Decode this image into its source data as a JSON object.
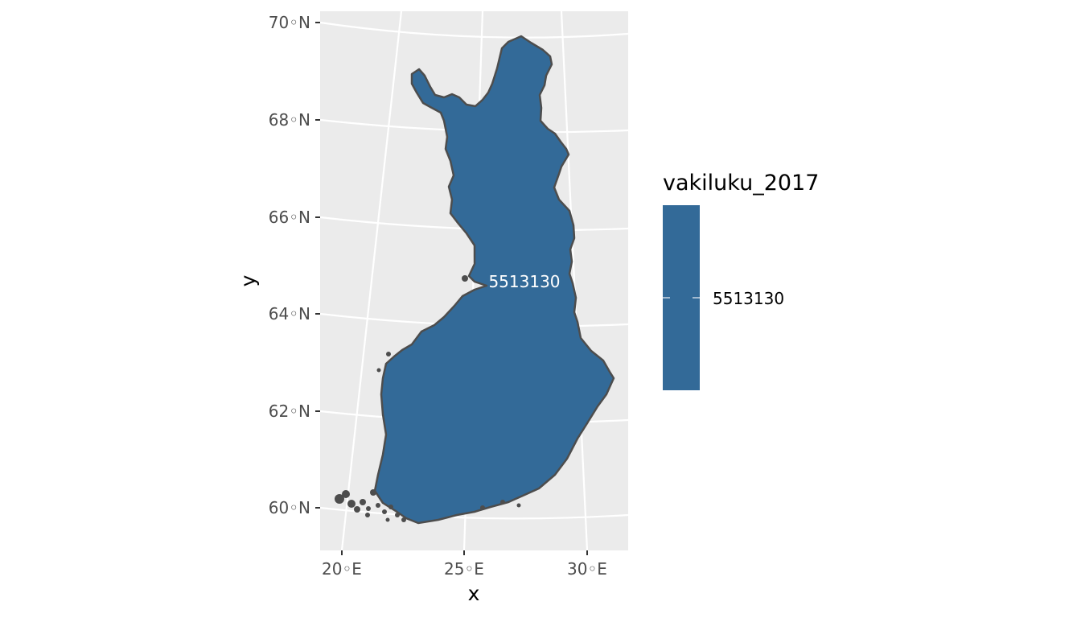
{
  "map": {
    "axes": {
      "x_title": "x",
      "y_title": "y",
      "lat_ticks": [
        "70◦N",
        "68◦N",
        "66◦N",
        "64◦N",
        "62◦N",
        "60◦N"
      ],
      "lon_ticks": [
        "20◦E",
        "25◦E",
        "30◦E"
      ]
    },
    "region": {
      "name_value": "5513130",
      "fill": "#336a98",
      "border": "#4d4d4d"
    },
    "legend": {
      "title": "vakiluku_2017",
      "label": "5513130",
      "color": "#336a98"
    },
    "colors": {
      "panel_bg": "#ebebeb",
      "grid": "#ffffff"
    }
  }
}
